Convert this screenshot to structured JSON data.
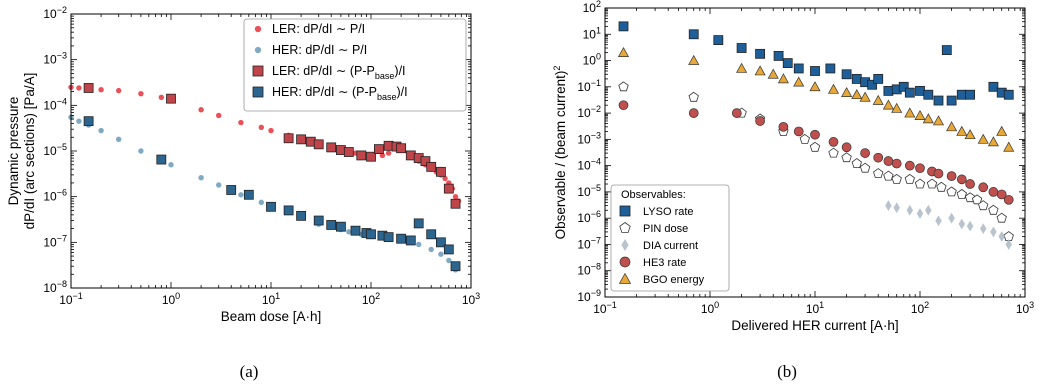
{
  "captions": [
    "(a)",
    "(b)"
  ],
  "chart_data": [
    {
      "type": "scatter",
      "panel": "a",
      "xlabel": "Beam dose [A·h]",
      "ylabel_lines": [
        "Dynamic pressure",
        "dP/dI (arc sections) [Pa/A]"
      ],
      "xscale": "log",
      "yscale": "log",
      "xlim": [
        0.1,
        1000
      ],
      "ylim": [
        1e-08,
        0.01
      ],
      "x_ticks": [
        {
          "v": 0.1,
          "b": "10",
          "e": "−1"
        },
        {
          "v": 1,
          "b": "10",
          "e": "0"
        },
        {
          "v": 10,
          "b": "10",
          "e": "1"
        },
        {
          "v": 100,
          "b": "10",
          "e": "2"
        },
        {
          "v": 1000,
          "b": "10",
          "e": "3"
        }
      ],
      "y_ticks": [
        {
          "v": 1e-08,
          "b": "10",
          "e": "−8"
        },
        {
          "v": 1e-07,
          "b": "10",
          "e": "−7"
        },
        {
          "v": 1e-06,
          "b": "10",
          "e": "−6"
        },
        {
          "v": 1e-05,
          "b": "10",
          "e": "−5"
        },
        {
          "v": 0.0001,
          "b": "10",
          "e": "−4"
        },
        {
          "v": 0.001,
          "b": "10",
          "e": "−3"
        },
        {
          "v": 0.01,
          "b": "10",
          "e": "−2"
        }
      ],
      "legend_position": "top-right",
      "grid": false,
      "series": [
        {
          "name": "LER: dP/dI ∼ P/I",
          "marker": "dot",
          "color": "#e8303a",
          "x": [
            0.1,
            0.12,
            0.15,
            0.2,
            0.3,
            0.5,
            0.8,
            1,
            2,
            3,
            5,
            8,
            10,
            15,
            20,
            30,
            40,
            50,
            60,
            70,
            80,
            100,
            130,
            150,
            180,
            200,
            250,
            300,
            350,
            400,
            450,
            500,
            550,
            600,
            650,
            700,
            750
          ],
          "y": [
            0.00025,
            0.00024,
            0.00023,
            0.00022,
            0.00021,
            0.00018,
            0.00015,
            0.00013,
            8e-05,
            6e-05,
            4.2e-05,
            3.3e-05,
            2.8e-05,
            2.2e-05,
            1.9e-05,
            1.5e-05,
            1.3e-05,
            1.1e-05,
            1e-05,
            9e-06,
            8.5e-06,
            8e-06,
            8e-06,
            9e-06,
            1.3e-05,
            1.2e-05,
            8e-06,
            6e-06,
            5e-06,
            4e-06,
            3.5e-06,
            3e-06,
            2.5e-06,
            2e-06,
            1.5e-06,
            1e-06,
            8e-07
          ]
        },
        {
          "name": "HER: dP/dI ∼ P/I",
          "marker": "dot",
          "color": "#6a9ab8",
          "x": [
            0.1,
            0.12,
            0.15,
            0.2,
            0.3,
            0.5,
            0.8,
            1,
            2,
            3,
            5,
            8,
            10,
            15,
            20,
            30,
            40,
            50,
            60,
            70,
            80,
            100,
            130,
            150,
            200,
            250,
            300,
            400,
            500,
            600,
            700
          ],
          "y": [
            5.5e-05,
            4.5e-05,
            3.7e-05,
            2.8e-05,
            1.8e-05,
            1e-05,
            6.5e-06,
            5e-06,
            2.6e-06,
            1.8e-06,
            1.1e-06,
            7.5e-07,
            6.3e-07,
            5e-07,
            3.5e-07,
            2.5e-07,
            2.2e-07,
            1.9e-07,
            1.7e-07,
            1.6e-07,
            1.5e-07,
            1.4e-07,
            1.3e-07,
            1.2e-07,
            1.1e-07,
            1e-07,
            9e-08,
            7e-08,
            5.5e-08,
            4e-08,
            2.5e-08
          ]
        },
        {
          "name": "LER: dP/dI ∼ (P-P_base)/I",
          "marker": "square",
          "color": "#c0454b",
          "x": [
            0.15,
            1,
            15,
            20,
            25,
            30,
            40,
            50,
            60,
            80,
            100,
            120,
            150,
            180,
            200,
            250,
            300,
            350,
            400,
            500,
            600,
            700
          ],
          "y": [
            0.00024,
            0.00014,
            1.9e-05,
            1.8e-05,
            1.6e-05,
            1.4e-05,
            1.2e-05,
            1.05e-05,
            9.5e-06,
            8e-06,
            7.5e-06,
            1.1e-05,
            1.3e-05,
            1.25e-05,
            1.15e-05,
            8e-06,
            7e-06,
            6e-06,
            4.5e-06,
            3.5e-06,
            1.5e-06,
            7e-07
          ]
        },
        {
          "name": "HER: dP/dI ∼ (P-P_base)/I",
          "marker": "square",
          "color": "#2b6590",
          "x": [
            0.15,
            0.8,
            4,
            6,
            10,
            15,
            20,
            30,
            40,
            50,
            70,
            90,
            100,
            130,
            150,
            200,
            250,
            300,
            400,
            500,
            600,
            700
          ],
          "y": [
            4.5e-05,
            6.5e-06,
            1.4e-06,
            1.1e-06,
            6e-07,
            5e-07,
            3.8e-07,
            3e-07,
            2.4e-07,
            2.2e-07,
            1.8e-07,
            1.6e-07,
            1.5e-07,
            1.4e-07,
            1.3e-07,
            1.2e-07,
            1.1e-07,
            2.6e-07,
            1.5e-07,
            1e-07,
            7e-08,
            3e-08
          ]
        }
      ]
    },
    {
      "type": "scatter",
      "panel": "b",
      "xlabel": "Delivered HER current [A·h]",
      "ylabel": "Observable / (beam current)²",
      "xscale": "log",
      "yscale": "log",
      "xlim": [
        0.1,
        1000
      ],
      "ylim": [
        1e-09,
        100
      ],
      "x_ticks": [
        {
          "v": 0.1,
          "b": "10",
          "e": "−1"
        },
        {
          "v": 1,
          "b": "10",
          "e": "0"
        },
        {
          "v": 10,
          "b": "10",
          "e": "1"
        },
        {
          "v": 100,
          "b": "10",
          "e": "2"
        },
        {
          "v": 1000,
          "b": "10",
          "e": "3"
        }
      ],
      "y_ticks": [
        {
          "v": 1e-09,
          "b": "10",
          "e": "−9"
        },
        {
          "v": 1e-08,
          "b": "10",
          "e": "−8"
        },
        {
          "v": 1e-07,
          "b": "10",
          "e": "−7"
        },
        {
          "v": 1e-06,
          "b": "10",
          "e": "−6"
        },
        {
          "v": 1e-05,
          "b": "10",
          "e": "−5"
        },
        {
          "v": 0.0001,
          "b": "10",
          "e": "−4"
        },
        {
          "v": 0.001,
          "b": "10",
          "e": "−3"
        },
        {
          "v": 0.01,
          "b": "10",
          "e": "−2"
        },
        {
          "v": 0.1,
          "b": "10",
          "e": "−1"
        },
        {
          "v": 1,
          "b": "10",
          "e": "0"
        },
        {
          "v": 10,
          "b": "10",
          "e": "1"
        },
        {
          "v": 100,
          "b": "10",
          "e": "2"
        }
      ],
      "legend_title": "Observables:",
      "legend_position": "lower-left",
      "grid": false,
      "series": [
        {
          "name": "LYSO rate",
          "marker": "square",
          "color": "#1f5f99",
          "x": [
            0.15,
            0.7,
            1.2,
            2,
            3,
            4.5,
            5.5,
            7,
            10,
            14,
            20,
            25,
            30,
            35,
            40,
            50,
            60,
            70,
            80,
            100,
            120,
            150,
            180,
            200,
            250,
            300,
            500,
            600,
            700
          ],
          "y": [
            20,
            10,
            6,
            3,
            1.8,
            1.5,
            0.8,
            0.5,
            0.4,
            0.5,
            0.3,
            0.2,
            0.15,
            0.12,
            0.2,
            0.07,
            0.08,
            0.1,
            0.06,
            0.07,
            0.05,
            0.03,
            2.5,
            0.03,
            0.05,
            0.05,
            0.1,
            0.06,
            0.05
          ]
        },
        {
          "name": "PIN dose",
          "marker": "pentagon",
          "color": "#ffffff",
          "x": [
            0.15,
            0.7,
            2,
            3,
            5,
            8,
            10,
            15,
            20,
            25,
            30,
            40,
            50,
            60,
            80,
            100,
            130,
            160,
            200,
            250,
            300,
            350,
            400,
            500,
            600,
            700
          ],
          "y": [
            0.1,
            0.04,
            0.01,
            0.006,
            0.002,
            0.001,
            0.0005,
            0.0003,
            0.0002,
            0.00012,
            8e-05,
            5e-05,
            4e-05,
            3e-05,
            3e-05,
            2e-05,
            2e-05,
            1.5e-05,
            1e-05,
            8e-06,
            6e-06,
            5e-06,
            3e-06,
            2e-06,
            1e-06,
            2e-07
          ]
        },
        {
          "name": "DIA current",
          "marker": "diamond",
          "color": "#a8b4c2",
          "x": [
            50,
            60,
            80,
            100,
            120,
            150,
            200,
            250,
            300,
            400,
            500,
            600,
            700
          ],
          "y": [
            3e-06,
            2.5e-06,
            2e-06,
            1.5e-06,
            2e-06,
            8e-07,
            1e-06,
            6e-07,
            5e-07,
            4e-07,
            3e-07,
            2e-07,
            1e-07
          ]
        },
        {
          "name": "HE3 rate",
          "marker": "circle",
          "color": "#c0504d",
          "x": [
            0.15,
            0.7,
            1.8,
            3,
            5,
            7,
            10,
            15,
            20,
            30,
            40,
            50,
            60,
            80,
            100,
            130,
            150,
            200,
            250,
            300,
            400,
            500,
            600,
            700
          ],
          "y": [
            0.02,
            0.01,
            0.01,
            0.005,
            0.003,
            0.002,
            0.0015,
            0.0008,
            0.0005,
            0.0003,
            0.0002,
            0.00015,
            0.00012,
            0.0001,
            8e-05,
            6e-05,
            5e-05,
            4e-05,
            3e-05,
            2e-05,
            1.5e-05,
            1e-05,
            8e-06,
            5e-06
          ]
        },
        {
          "name": "BGO energy",
          "marker": "triangle",
          "color": "#e8a838",
          "x": [
            0.15,
            0.7,
            2,
            3,
            4,
            5,
            7,
            10,
            15,
            20,
            25,
            30,
            40,
            50,
            60,
            80,
            100,
            120,
            150,
            200,
            250,
            300,
            400,
            500,
            600,
            700
          ],
          "y": [
            2,
            1,
            0.5,
            0.4,
            0.3,
            0.2,
            0.15,
            0.1,
            0.08,
            0.06,
            0.05,
            0.04,
            0.03,
            0.02,
            0.015,
            0.01,
            0.008,
            0.006,
            0.005,
            0.003,
            0.002,
            0.0015,
            0.001,
            0.0008,
            0.002,
            0.0005
          ]
        }
      ]
    }
  ]
}
